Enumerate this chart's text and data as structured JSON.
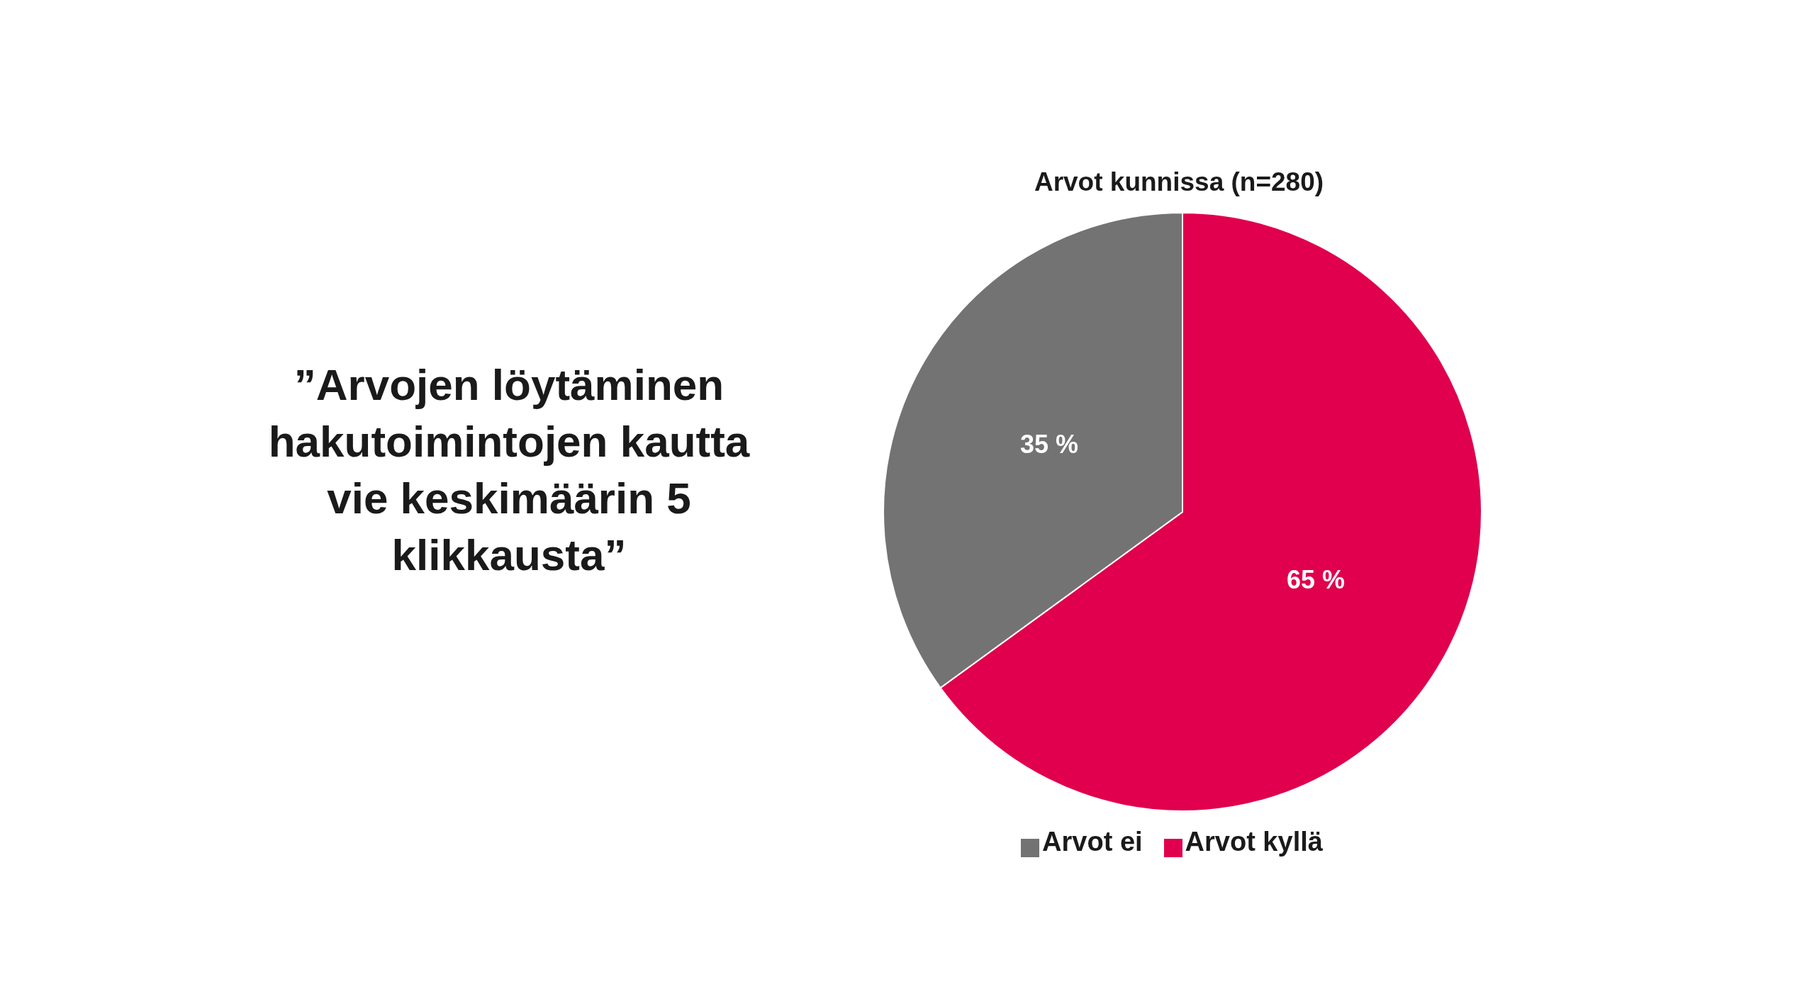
{
  "chart_data": {
    "type": "pie",
    "title": "Arvot kunnissa (n=280)",
    "categories": [
      "Arvot kyllä",
      "Arvot ei"
    ],
    "values": [
      65,
      35
    ],
    "colors": [
      "#e0004d",
      "#737373"
    ],
    "value_labels": [
      "65 %",
      "35 %"
    ],
    "legend": "bottom",
    "annotations": [
      "”Arvojen löytäminen hakutoimintojen kautta vie keskimäärin 5 klikkausta”"
    ]
  }
}
